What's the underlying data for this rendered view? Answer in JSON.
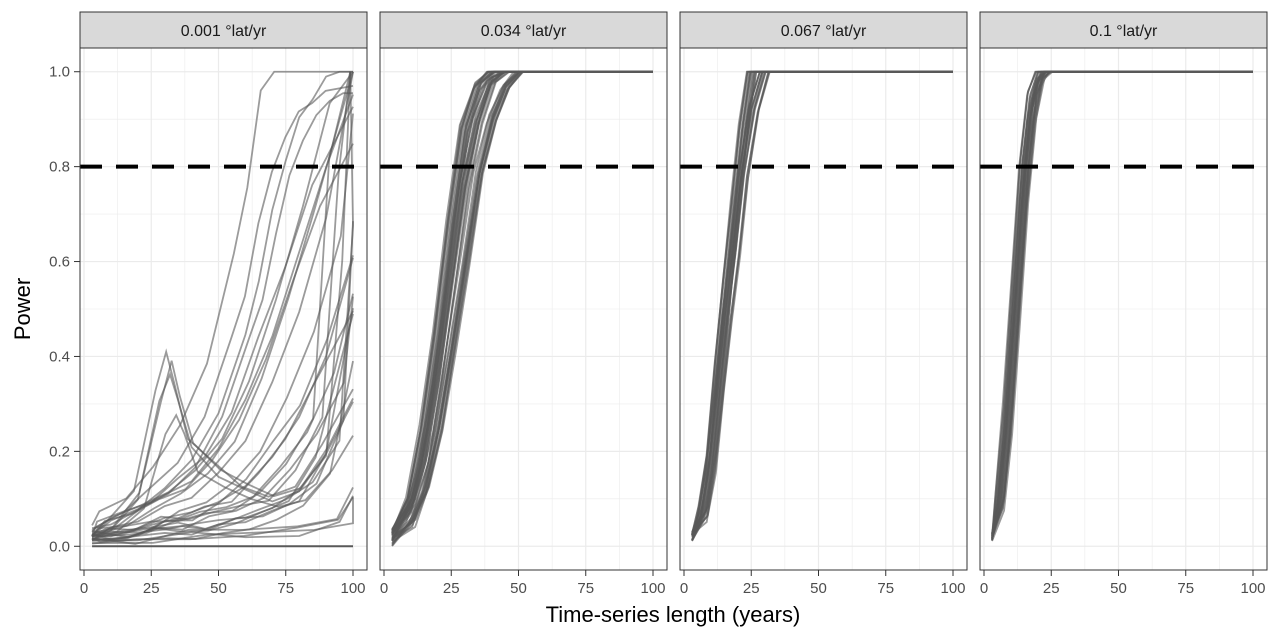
{
  "chart_data": {
    "type": "line",
    "xlabel": "Time-series length (years)",
    "ylabel": "Power",
    "xlim": [
      0,
      100
    ],
    "ylim": [
      -0.05,
      1.05
    ],
    "x_ticks": [
      0,
      25,
      50,
      75,
      100
    ],
    "y_ticks": [
      0.0,
      0.2,
      0.4,
      0.6,
      0.8,
      1.0
    ],
    "y_tick_labels": [
      "0.0",
      "0.2",
      "0.4",
      "0.6",
      "0.8",
      "1.0"
    ],
    "grid": true,
    "threshold": 0.8,
    "colors": {
      "line": "#595959",
      "threshold": "#000000",
      "strip_fill": "#d9d9d9",
      "grid_major": "#ebebeb",
      "panel_border": "#333333"
    },
    "panels": [
      {
        "label": "0.001 °lat/yr",
        "trajectories": [
          {
            "x": [
              3,
              10,
              20,
              30,
              40,
              50,
              60,
              70,
              80,
              90,
              96,
              99
            ],
            "y": [
              0.02,
              0.03,
              0.03,
              0.04,
              0.04,
              0.05,
              0.06,
              0.08,
              0.12,
              0.2,
              0.6,
              1.0
            ]
          },
          {
            "x": [
              3,
              10,
              20,
              30,
              40,
              50,
              60,
              65,
              70,
              75,
              80,
              85,
              90,
              95,
              100
            ],
            "y": [
              0.03,
              0.05,
              0.08,
              0.12,
              0.18,
              0.28,
              0.45,
              0.55,
              0.7,
              0.82,
              0.9,
              0.95,
              0.98,
              1.0,
              1.0
            ]
          },
          {
            "x": [
              3,
              10,
              20,
              30,
              40,
              50,
              60,
              70,
              80,
              90,
              100
            ],
            "y": [
              0.02,
              0.03,
              0.05,
              0.08,
              0.1,
              0.15,
              0.22,
              0.35,
              0.5,
              0.7,
              1.0
            ]
          },
          {
            "x": [
              3,
              10,
              20,
              28,
              32,
              35,
              40,
              50,
              60,
              70,
              80,
              90,
              100
            ],
            "y": [
              0.02,
              0.04,
              0.1,
              0.3,
              0.37,
              0.3,
              0.2,
              0.15,
              0.12,
              0.1,
              0.12,
              0.2,
              0.3
            ]
          },
          {
            "x": [
              3,
              10,
              20,
              30,
              40,
              50,
              60,
              70,
              80,
              90,
              100
            ],
            "y": [
              0.02,
              0.02,
              0.02,
              0.03,
              0.03,
              0.04,
              0.05,
              0.07,
              0.1,
              0.2,
              0.5
            ]
          },
          {
            "x": [
              3,
              20,
              40,
              60,
              80,
              95,
              100
            ],
            "y": [
              0.01,
              0.01,
              0.02,
              0.02,
              0.03,
              0.05,
              0.1
            ]
          },
          {
            "x": [
              3,
              10,
              20,
              30,
              40,
              50,
              60,
              70,
              80,
              90,
              100
            ],
            "y": [
              0.03,
              0.05,
              0.07,
              0.1,
              0.14,
              0.2,
              0.3,
              0.45,
              0.62,
              0.8,
              0.96
            ]
          },
          {
            "x": [
              3,
              10,
              20,
              30,
              40,
              50,
              60,
              70,
              80,
              90,
              100
            ],
            "y": [
              0.02,
              0.03,
              0.04,
              0.05,
              0.07,
              0.09,
              0.12,
              0.18,
              0.27,
              0.4,
              0.6
            ]
          }
        ]
      },
      {
        "label": "0.034 °lat/yr",
        "trajectories": [
          {
            "x": [
              3,
              10,
              15,
              20,
              25,
              30,
              35,
              40,
              45,
              100
            ],
            "y": [
              0.02,
              0.08,
              0.18,
              0.35,
              0.55,
              0.76,
              0.9,
              0.98,
              1.0,
              1.0
            ]
          },
          {
            "x": [
              3,
              10,
              15,
              20,
              25,
              30,
              35,
              40,
              100
            ],
            "y": [
              0.03,
              0.1,
              0.25,
              0.45,
              0.68,
              0.88,
              0.97,
              1.0,
              1.0
            ]
          },
          {
            "x": [
              3,
              10,
              15,
              20,
              25,
              30,
              35,
              40,
              45,
              50,
              100
            ],
            "y": [
              0.01,
              0.05,
              0.12,
              0.25,
              0.42,
              0.6,
              0.78,
              0.9,
              0.97,
              1.0,
              1.0
            ]
          }
        ]
      },
      {
        "label": "0.067 °lat/yr",
        "trajectories": [
          {
            "x": [
              3,
              7,
              10,
              13,
              16,
              19,
              22,
              25,
              100
            ],
            "y": [
              0.02,
              0.08,
              0.2,
              0.38,
              0.56,
              0.72,
              0.88,
              1.0,
              1.0
            ]
          },
          {
            "x": [
              3,
              7,
              10,
              13,
              16,
              19,
              22,
              26,
              30,
              100
            ],
            "y": [
              0.02,
              0.06,
              0.16,
              0.32,
              0.48,
              0.62,
              0.78,
              0.92,
              1.0,
              1.0
            ]
          }
        ]
      },
      {
        "label": "0.1 °lat/yr",
        "trajectories": [
          {
            "x": [
              3,
              6,
              9,
              12,
              15,
              18,
              21,
              100
            ],
            "y": [
              0.02,
              0.1,
              0.3,
              0.55,
              0.8,
              0.95,
              1.0,
              1.0
            ]
          },
          {
            "x": [
              3,
              6,
              9,
              12,
              15,
              18,
              21,
              24,
              100
            ],
            "y": [
              0.02,
              0.08,
              0.24,
              0.48,
              0.72,
              0.9,
              0.98,
              1.0,
              1.0
            ]
          }
        ]
      }
    ]
  }
}
